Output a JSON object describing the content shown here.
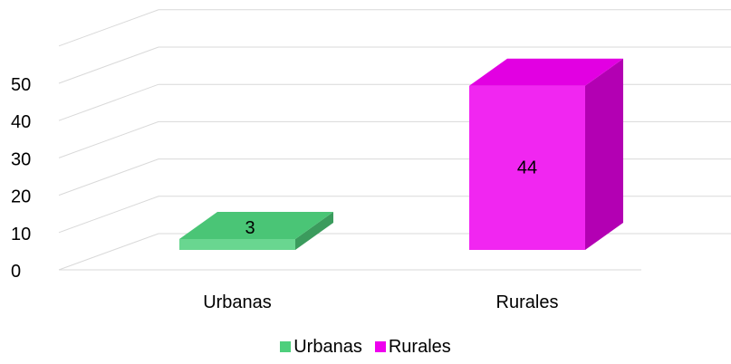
{
  "chart_data": {
    "type": "bar",
    "categories": [
      "Urbanas",
      "Rurales"
    ],
    "values": [
      3,
      44
    ],
    "series": [
      {
        "name": "Urbanas",
        "values": [
          3,
          null
        ],
        "color": "#4ecf7c"
      },
      {
        "name": "Rurales",
        "values": [
          null,
          44
        ],
        "color": "#ee00ee"
      }
    ],
    "ylim": [
      0,
      50
    ],
    "yticks": [
      0,
      10,
      20,
      30,
      40,
      50
    ],
    "grid": true,
    "legend_position": "bottom",
    "data_labels": [
      "3",
      "44"
    ],
    "title": "",
    "xlabel": "",
    "ylabel": ""
  }
}
